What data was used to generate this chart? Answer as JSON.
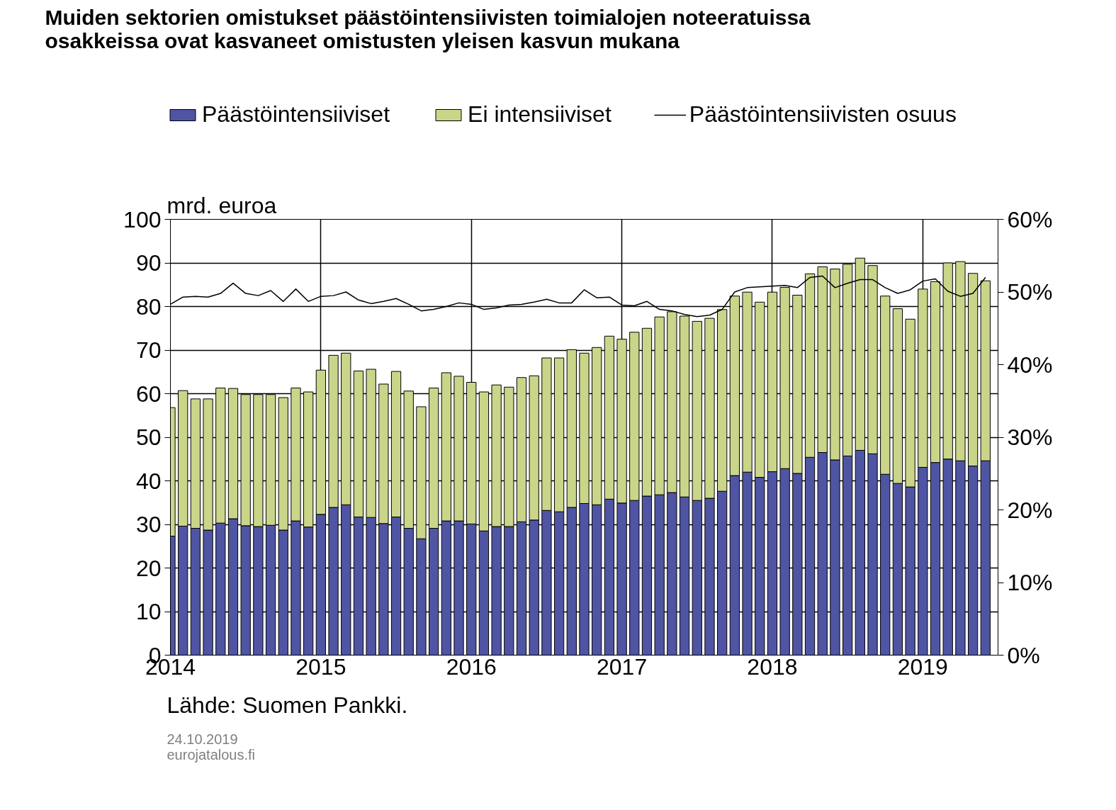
{
  "chart_data": {
    "type": "bar",
    "stacked": true,
    "title": "Muiden sektorien omistukset päästöintensiivisten toimialojen noteeratuissa\nosakkeissa ovat kasvaneet omistusten yleisen kasvun mukana",
    "ylabel": "mrd. euroa",
    "x": [
      "2014-01",
      "2014-02",
      "2014-03",
      "2014-04",
      "2014-05",
      "2014-06",
      "2014-07",
      "2014-08",
      "2014-09",
      "2014-10",
      "2014-11",
      "2014-12",
      "2015-01",
      "2015-02",
      "2015-03",
      "2015-04",
      "2015-05",
      "2015-06",
      "2015-07",
      "2015-08",
      "2015-09",
      "2015-10",
      "2015-11",
      "2015-12",
      "2016-01",
      "2016-02",
      "2016-03",
      "2016-04",
      "2016-05",
      "2016-06",
      "2016-07",
      "2016-08",
      "2016-09",
      "2016-10",
      "2016-11",
      "2016-12",
      "2017-01",
      "2017-02",
      "2017-03",
      "2017-04",
      "2017-05",
      "2017-06",
      "2017-07",
      "2017-08",
      "2017-09",
      "2017-10",
      "2017-11",
      "2017-12",
      "2018-01",
      "2018-02",
      "2018-03",
      "2018-04",
      "2018-05",
      "2018-06",
      "2018-07",
      "2018-08",
      "2018-09",
      "2018-10",
      "2018-11",
      "2018-12",
      "2019-01",
      "2019-02",
      "2019-03",
      "2019-04",
      "2019-05",
      "2019-06"
    ],
    "series": [
      {
        "name": "Päästöintensiiviset",
        "color": "#4f55a3",
        "values": [
          27.3,
          29.6,
          29.1,
          28.7,
          30.3,
          31.3,
          29.7,
          29.5,
          29.8,
          28.7,
          30.8,
          29.4,
          32.3,
          33.9,
          34.5,
          31.7,
          31.6,
          30.2,
          31.7,
          29.1,
          26.7,
          29.1,
          30.8,
          30.8,
          30.1,
          28.5,
          29.5,
          29.5,
          30.6,
          31.0,
          33.2,
          32.9,
          33.9,
          34.8,
          34.5,
          35.8,
          34.9,
          35.5,
          36.5,
          36.8,
          37.3,
          36.3,
          35.5,
          36.0,
          37.6,
          41.2,
          42.0,
          40.8,
          42.1,
          42.8,
          41.7,
          45.4,
          46.5,
          44.8,
          45.7,
          47.0,
          46.2,
          41.5,
          39.4,
          38.6,
          43.1,
          44.2,
          45.0,
          44.6,
          43.4,
          44.6
        ]
      },
      {
        "name": "Ei intensiiviset",
        "color": "#cad58a",
        "values": [
          29.5,
          31.1,
          29.7,
          30.1,
          31.0,
          29.9,
          30.1,
          30.3,
          30.0,
          30.4,
          30.5,
          31.0,
          33.1,
          34.9,
          34.8,
          33.5,
          34.0,
          32.0,
          33.4,
          31.5,
          30.3,
          32.2,
          34.0,
          33.2,
          32.5,
          31.9,
          32.5,
          32.0,
          33.1,
          33.1,
          35.0,
          35.3,
          36.2,
          34.5,
          36.1,
          37.4,
          37.6,
          38.6,
          38.5,
          40.8,
          41.5,
          41.5,
          41.1,
          41.3,
          41.7,
          41.2,
          41.3,
          40.2,
          41.2,
          41.6,
          40.9,
          42.1,
          42.6,
          43.8,
          44.0,
          44.1,
          43.2,
          40.9,
          40.1,
          38.5,
          40.9,
          41.5,
          45.0,
          45.7,
          44.2,
          41.3
        ]
      },
      {
        "name": "Päästöintensiivisten osuus",
        "type": "line",
        "axis": "y2",
        "color": "#000000",
        "marker": "none",
        "line_style": "solid",
        "values": [
          48.3,
          49.3,
          49.4,
          49.3,
          49.8,
          51.2,
          49.8,
          49.5,
          50.2,
          48.7,
          50.4,
          48.7,
          49.4,
          49.5,
          50.0,
          48.9,
          48.4,
          48.7,
          49.1,
          48.3,
          47.4,
          47.6,
          48.0,
          48.5,
          48.3,
          47.6,
          47.8,
          48.2,
          48.3,
          48.6,
          49.0,
          48.5,
          48.5,
          50.3,
          49.2,
          49.3,
          48.2,
          48.1,
          48.7,
          47.6,
          47.4,
          46.9,
          46.6,
          46.8,
          47.6,
          50.0,
          50.6,
          50.7,
          50.8,
          50.9,
          50.6,
          52.0,
          52.2,
          50.6,
          51.2,
          51.7,
          51.7,
          50.6,
          49.8,
          50.3,
          51.5,
          51.8,
          50.1,
          49.4,
          49.8,
          52.0
        ]
      }
    ],
    "xlim": [
      "2014-01-01",
      "2019-07-01"
    ],
    "xticks": [
      "2014",
      "2015",
      "2016",
      "2017",
      "2018",
      "2019"
    ],
    "ylim": [
      0,
      100
    ],
    "yticks": [
      0,
      10,
      20,
      30,
      40,
      50,
      60,
      70,
      80,
      90,
      100
    ],
    "y2lim": [
      0,
      60
    ],
    "y2ticks": [
      {
        "value": 0,
        "label": "0%"
      },
      {
        "value": 10,
        "label": "10%"
      },
      {
        "value": 20,
        "label": "20%"
      },
      {
        "value": 30,
        "label": "30%"
      },
      {
        "value": 40,
        "label": "40%"
      },
      {
        "value": 50,
        "label": "50%"
      },
      {
        "value": 60,
        "label": "60%"
      }
    ],
    "grid": true,
    "legend": "top",
    "annotations": [
      "Lähde: Suomen Pankki.",
      "24.10.2019",
      "eurojatalous.fi"
    ]
  }
}
